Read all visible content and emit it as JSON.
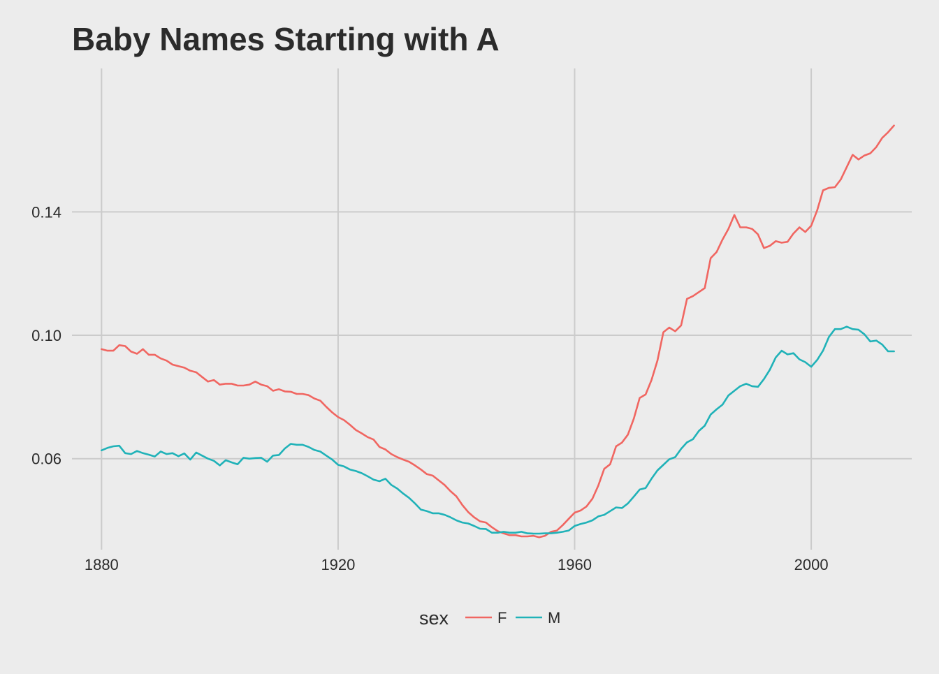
{
  "chart_data": {
    "type": "line",
    "title": "Baby Names Starting with A",
    "xlabel": "",
    "ylabel": "",
    "xlim": [
      1875,
      2017
    ],
    "ylim": [
      0.0305,
      0.1865
    ],
    "x_ticks": [
      1880,
      1920,
      1960,
      2000
    ],
    "x_tick_labels": [
      "1880",
      "1920",
      "1960",
      "2000"
    ],
    "y_ticks": [
      0.06,
      0.1,
      0.14
    ],
    "y_tick_labels": [
      "0.06",
      "0.10",
      "0.14"
    ],
    "grid": true,
    "legend": {
      "title": "sex",
      "position": "bottom"
    },
    "series": [
      {
        "name": "F",
        "color": "#f06661",
        "points": [
          [
            1880,
            0.0955
          ],
          [
            1881,
            0.095
          ],
          [
            1882,
            0.095
          ],
          [
            1883,
            0.0968
          ],
          [
            1884,
            0.0965
          ],
          [
            1885,
            0.0947
          ],
          [
            1886,
            0.094
          ],
          [
            1887,
            0.0955
          ],
          [
            1888,
            0.0937
          ],
          [
            1889,
            0.0937
          ],
          [
            1890,
            0.0925
          ],
          [
            1891,
            0.0918
          ],
          [
            1892,
            0.0905
          ],
          [
            1893,
            0.09
          ],
          [
            1894,
            0.0895
          ],
          [
            1895,
            0.0885
          ],
          [
            1896,
            0.088
          ],
          [
            1897,
            0.0865
          ],
          [
            1898,
            0.085
          ],
          [
            1899,
            0.0855
          ],
          [
            1900,
            0.084
          ],
          [
            1901,
            0.0843
          ],
          [
            1902,
            0.0843
          ],
          [
            1903,
            0.0837
          ],
          [
            1904,
            0.0837
          ],
          [
            1905,
            0.084
          ],
          [
            1906,
            0.085
          ],
          [
            1907,
            0.084
          ],
          [
            1908,
            0.0835
          ],
          [
            1909,
            0.082
          ],
          [
            1910,
            0.0825
          ],
          [
            1911,
            0.0818
          ],
          [
            1912,
            0.0817
          ],
          [
            1913,
            0.081
          ],
          [
            1914,
            0.081
          ],
          [
            1915,
            0.0806
          ],
          [
            1916,
            0.0795
          ],
          [
            1917,
            0.0788
          ],
          [
            1918,
            0.0768
          ],
          [
            1919,
            0.075
          ],
          [
            1920,
            0.0735
          ],
          [
            1921,
            0.0725
          ],
          [
            1922,
            0.071
          ],
          [
            1923,
            0.0693
          ],
          [
            1924,
            0.0682
          ],
          [
            1925,
            0.067
          ],
          [
            1926,
            0.0662
          ],
          [
            1927,
            0.0638
          ],
          [
            1928,
            0.063
          ],
          [
            1929,
            0.0615
          ],
          [
            1930,
            0.0605
          ],
          [
            1931,
            0.0597
          ],
          [
            1932,
            0.059
          ],
          [
            1933,
            0.0578
          ],
          [
            1934,
            0.0565
          ],
          [
            1935,
            0.055
          ],
          [
            1936,
            0.0545
          ],
          [
            1937,
            0.053
          ],
          [
            1938,
            0.0515
          ],
          [
            1939,
            0.0495
          ],
          [
            1940,
            0.0478
          ],
          [
            1941,
            0.045
          ],
          [
            1942,
            0.0427
          ],
          [
            1943,
            0.041
          ],
          [
            1944,
            0.0397
          ],
          [
            1945,
            0.0393
          ],
          [
            1946,
            0.0378
          ],
          [
            1947,
            0.0365
          ],
          [
            1948,
            0.0358
          ],
          [
            1949,
            0.0352
          ],
          [
            1950,
            0.0352
          ],
          [
            1951,
            0.0348
          ],
          [
            1952,
            0.0348
          ],
          [
            1953,
            0.035
          ],
          [
            1954,
            0.0345
          ],
          [
            1955,
            0.035
          ],
          [
            1956,
            0.0363
          ],
          [
            1957,
            0.0367
          ],
          [
            1958,
            0.0385
          ],
          [
            1959,
            0.0405
          ],
          [
            1960,
            0.0425
          ],
          [
            1961,
            0.0432
          ],
          [
            1962,
            0.0445
          ],
          [
            1963,
            0.047
          ],
          [
            1964,
            0.0513
          ],
          [
            1965,
            0.0567
          ],
          [
            1966,
            0.0582
          ],
          [
            1967,
            0.064
          ],
          [
            1968,
            0.0652
          ],
          [
            1969,
            0.0678
          ],
          [
            1970,
            0.073
          ],
          [
            1971,
            0.0797
          ],
          [
            1972,
            0.0808
          ],
          [
            1973,
            0.0855
          ],
          [
            1974,
            0.0918
          ],
          [
            1975,
            0.101
          ],
          [
            1976,
            0.1025
          ],
          [
            1977,
            0.1013
          ],
          [
            1978,
            0.1032
          ],
          [
            1979,
            0.1118
          ],
          [
            1980,
            0.1127
          ],
          [
            1981,
            0.114
          ],
          [
            1982,
            0.1153
          ],
          [
            1983,
            0.125
          ],
          [
            1984,
            0.127
          ],
          [
            1985,
            0.131
          ],
          [
            1986,
            0.1345
          ],
          [
            1987,
            0.139
          ],
          [
            1988,
            0.135
          ],
          [
            1989,
            0.135
          ],
          [
            1990,
            0.1345
          ],
          [
            1991,
            0.1327
          ],
          [
            1992,
            0.1283
          ],
          [
            1993,
            0.129
          ],
          [
            1994,
            0.1305
          ],
          [
            1995,
            0.13
          ],
          [
            1996,
            0.1303
          ],
          [
            1997,
            0.133
          ],
          [
            1998,
            0.135
          ],
          [
            1999,
            0.1335
          ],
          [
            2000,
            0.1355
          ],
          [
            2001,
            0.1405
          ],
          [
            2002,
            0.147
          ],
          [
            2003,
            0.1478
          ],
          [
            2004,
            0.148
          ],
          [
            2005,
            0.1505
          ],
          [
            2006,
            0.1545
          ],
          [
            2007,
            0.1585
          ],
          [
            2008,
            0.157
          ],
          [
            2009,
            0.1583
          ],
          [
            2010,
            0.159
          ],
          [
            2011,
            0.161
          ],
          [
            2012,
            0.164
          ],
          [
            2013,
            0.1658
          ],
          [
            2014,
            0.168
          ]
        ]
      },
      {
        "name": "M",
        "color": "#20b2b8",
        "points": [
          [
            1880,
            0.0627
          ],
          [
            1881,
            0.0635
          ],
          [
            1882,
            0.064
          ],
          [
            1883,
            0.0642
          ],
          [
            1884,
            0.0618
          ],
          [
            1885,
            0.0615
          ],
          [
            1886,
            0.0625
          ],
          [
            1887,
            0.0618
          ],
          [
            1888,
            0.0613
          ],
          [
            1889,
            0.0607
          ],
          [
            1890,
            0.0623
          ],
          [
            1891,
            0.0615
          ],
          [
            1892,
            0.0618
          ],
          [
            1893,
            0.0608
          ],
          [
            1894,
            0.0617
          ],
          [
            1895,
            0.0597
          ],
          [
            1896,
            0.062
          ],
          [
            1897,
            0.061
          ],
          [
            1898,
            0.06
          ],
          [
            1899,
            0.0593
          ],
          [
            1900,
            0.0578
          ],
          [
            1901,
            0.0595
          ],
          [
            1902,
            0.0588
          ],
          [
            1903,
            0.0582
          ],
          [
            1904,
            0.0603
          ],
          [
            1905,
            0.06
          ],
          [
            1906,
            0.0602
          ],
          [
            1907,
            0.0603
          ],
          [
            1908,
            0.059
          ],
          [
            1909,
            0.061
          ],
          [
            1910,
            0.0612
          ],
          [
            1911,
            0.0633
          ],
          [
            1912,
            0.0648
          ],
          [
            1913,
            0.0645
          ],
          [
            1914,
            0.0645
          ],
          [
            1915,
            0.0638
          ],
          [
            1916,
            0.0628
          ],
          [
            1917,
            0.0623
          ],
          [
            1918,
            0.061
          ],
          [
            1919,
            0.0597
          ],
          [
            1920,
            0.058
          ],
          [
            1921,
            0.0575
          ],
          [
            1922,
            0.0565
          ],
          [
            1923,
            0.056
          ],
          [
            1924,
            0.0553
          ],
          [
            1925,
            0.0543
          ],
          [
            1926,
            0.0532
          ],
          [
            1927,
            0.0527
          ],
          [
            1928,
            0.0535
          ],
          [
            1929,
            0.0515
          ],
          [
            1930,
            0.0503
          ],
          [
            1931,
            0.0487
          ],
          [
            1932,
            0.0473
          ],
          [
            1933,
            0.0455
          ],
          [
            1934,
            0.0435
          ],
          [
            1935,
            0.043
          ],
          [
            1936,
            0.0423
          ],
          [
            1937,
            0.0423
          ],
          [
            1938,
            0.0418
          ],
          [
            1939,
            0.041
          ],
          [
            1940,
            0.04
          ],
          [
            1941,
            0.0393
          ],
          [
            1942,
            0.039
          ],
          [
            1943,
            0.0382
          ],
          [
            1944,
            0.0373
          ],
          [
            1945,
            0.0372
          ],
          [
            1946,
            0.036
          ],
          [
            1947,
            0.036
          ],
          [
            1948,
            0.0363
          ],
          [
            1949,
            0.036
          ],
          [
            1950,
            0.036
          ],
          [
            1951,
            0.0363
          ],
          [
            1952,
            0.0358
          ],
          [
            1953,
            0.0357
          ],
          [
            1954,
            0.0357
          ],
          [
            1955,
            0.0358
          ],
          [
            1956,
            0.0358
          ],
          [
            1957,
            0.036
          ],
          [
            1958,
            0.0363
          ],
          [
            1959,
            0.0367
          ],
          [
            1960,
            0.0382
          ],
          [
            1961,
            0.0388
          ],
          [
            1962,
            0.0393
          ],
          [
            1963,
            0.04
          ],
          [
            1964,
            0.0413
          ],
          [
            1965,
            0.0418
          ],
          [
            1966,
            0.043
          ],
          [
            1967,
            0.0442
          ],
          [
            1968,
            0.044
          ],
          [
            1969,
            0.0455
          ],
          [
            1970,
            0.0477
          ],
          [
            1971,
            0.05
          ],
          [
            1972,
            0.0505
          ],
          [
            1973,
            0.0535
          ],
          [
            1974,
            0.0562
          ],
          [
            1975,
            0.058
          ],
          [
            1976,
            0.0598
          ],
          [
            1977,
            0.0605
          ],
          [
            1978,
            0.0632
          ],
          [
            1979,
            0.0653
          ],
          [
            1980,
            0.0663
          ],
          [
            1981,
            0.069
          ],
          [
            1982,
            0.0707
          ],
          [
            1983,
            0.0743
          ],
          [
            1984,
            0.076
          ],
          [
            1985,
            0.0775
          ],
          [
            1986,
            0.0805
          ],
          [
            1987,
            0.082
          ],
          [
            1988,
            0.0835
          ],
          [
            1989,
            0.0843
          ],
          [
            1990,
            0.0835
          ],
          [
            1991,
            0.0833
          ],
          [
            1992,
            0.0858
          ],
          [
            1993,
            0.0888
          ],
          [
            1994,
            0.0928
          ],
          [
            1995,
            0.095
          ],
          [
            1996,
            0.0938
          ],
          [
            1997,
            0.0942
          ],
          [
            1998,
            0.0922
          ],
          [
            1999,
            0.0913
          ],
          [
            2000,
            0.0898
          ],
          [
            2001,
            0.092
          ],
          [
            2002,
            0.095
          ],
          [
            2003,
            0.0995
          ],
          [
            2004,
            0.102
          ],
          [
            2005,
            0.102
          ],
          [
            2006,
            0.1028
          ],
          [
            2007,
            0.102
          ],
          [
            2008,
            0.1018
          ],
          [
            2009,
            0.1003
          ],
          [
            2010,
            0.098
          ],
          [
            2011,
            0.0983
          ],
          [
            2012,
            0.097
          ],
          [
            2013,
            0.0948
          ],
          [
            2014,
            0.0948
          ]
        ]
      }
    ]
  }
}
